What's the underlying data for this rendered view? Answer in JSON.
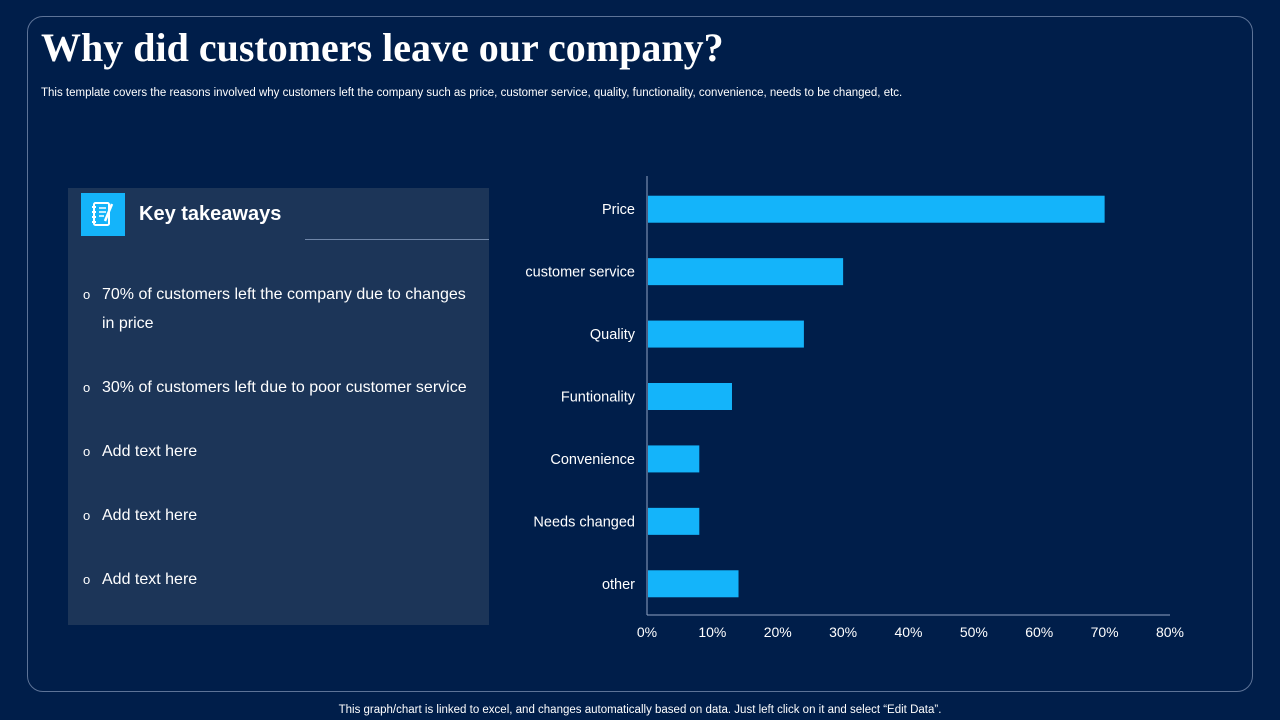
{
  "title": "Why did customers leave our company?",
  "subtitle": "This template covers the reasons involved why customers left the company such as price, customer service, quality, functionality, convenience, needs to be changed, etc.",
  "takeaways": {
    "heading": "Key takeaways",
    "icon": "notepad-icon",
    "items": [
      "70% of customers left the company due to changes in price",
      "30% of customers left due to poor customer service",
      "Add text here",
      "Add text here",
      "Add text here"
    ]
  },
  "footer": "This graph/chart is linked to excel,  and changes automatically based on data. Just left click on it and select “Edit Data”.",
  "colors": {
    "background": "#001e4a",
    "panel": "#1c3558",
    "bar": "#14b4fa",
    "text": "#ffffff"
  },
  "chart_data": {
    "type": "bar",
    "orientation": "horizontal",
    "categories": [
      "Price",
      "customer service",
      "Quality",
      "Funtionality",
      "Convenience",
      "Needs changed",
      "other"
    ],
    "values": [
      70,
      30,
      24,
      13,
      8,
      8,
      14
    ],
    "xlim": [
      0,
      80
    ],
    "xticks": [
      "0%",
      "10%",
      "20%",
      "30%",
      "40%",
      "50%",
      "60%",
      "70%",
      "80%"
    ],
    "title": "",
    "xlabel": "",
    "ylabel": "",
    "legend": "none",
    "grid": false
  }
}
